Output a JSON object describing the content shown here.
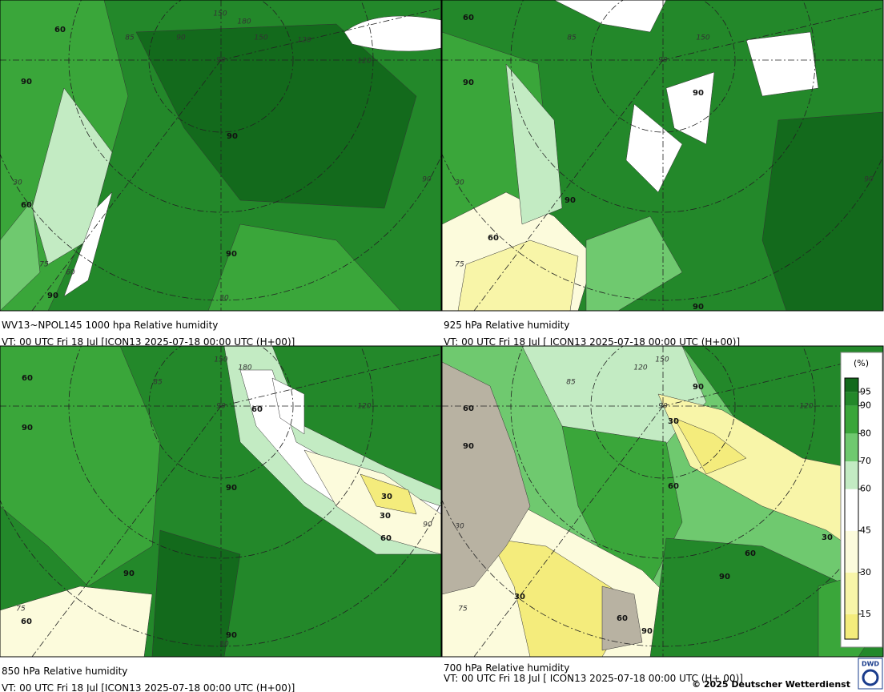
{
  "panels": [
    {
      "title": "WV13~NPOL145 1000 hpa Relative humidity",
      "valid": "VT: 00 UTC Fri  18 Jul [ICON13 2025-07-18 00:00 UTC  (H+00)]",
      "contour_labels": [
        "60",
        "90",
        "90",
        "90",
        "60",
        "90"
      ],
      "grid_labels": [
        "120",
        "150",
        "180",
        "150",
        "85",
        "90",
        "90",
        "120",
        "30",
        "75",
        "60",
        "30",
        "90"
      ]
    },
    {
      "title": "925 hPa Relative humidity",
      "valid": "VT: 00 UTC Fri  18 Jul [ ICON13 2025-07-18 00:00 UTC  (H+00)]",
      "contour_labels": [
        "60",
        "90",
        "90",
        "90",
        "60",
        "90"
      ],
      "grid_labels": [
        "85",
        "150",
        "90",
        "30",
        "75",
        "90"
      ]
    },
    {
      "title": "850 hPa  Relative humidity",
      "valid": "VT: 00 UTC Fri  18 Jul [ICON13 2025-07-18 00:00 UTC  (H+00)]",
      "contour_labels": [
        "60",
        "90",
        "60",
        "90",
        "30",
        "30",
        "60",
        "90",
        "60",
        "90"
      ],
      "grid_labels": [
        "150",
        "180",
        "85",
        "90",
        "120",
        "75",
        "30",
        "90"
      ]
    },
    {
      "title": "700 hPa Relative humidity",
      "valid": "VT: 00 UTC Fri  18 Jul [ ICON13 2025-07-18 00:00 UTC  (H+ 00)]",
      "contour_labels": [
        "60",
        "90",
        "90",
        "30",
        "60",
        "30",
        "60",
        "90",
        "30",
        "60",
        "90"
      ],
      "grid_labels": [
        "150",
        "120",
        "85",
        "90",
        "120",
        "30",
        "75",
        "90"
      ]
    }
  ],
  "colorbar": {
    "unit": "(%)",
    "lim": [
      6,
      100
    ],
    "ticks": [
      15,
      30,
      45,
      60,
      70,
      80,
      90,
      95
    ],
    "colors": [
      "#f4ec7c",
      "#f8f5a8",
      "#fcfbdc",
      "#ffffff",
      "#c3ebc3",
      "#6fc96f",
      "#3aa63a",
      "#23882a",
      "#136a1c"
    ]
  },
  "footer": "© 2025 Deutscher Wetterdienst",
  "logo": "DWD"
}
